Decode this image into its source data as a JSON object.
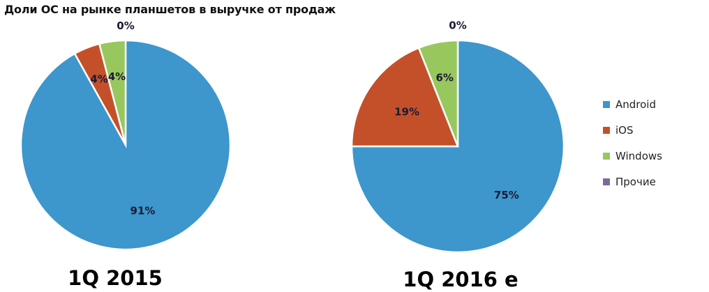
{
  "chart_data": {
    "title": "Доли ОС на рынке планшетов в выручке от продаж",
    "type": "pie",
    "legend_position": "right",
    "series_names": [
      "Android",
      "iOS",
      "Windows",
      "Прочие"
    ],
    "colors": {
      "Android": "#3d96cc",
      "iOS": "#c4502a",
      "Windows": "#98c75e",
      "Прочие": "#7c6a9a"
    },
    "charts": [
      {
        "caption": "1Q 2015",
        "slices": [
          {
            "name": "Android",
            "value": 91,
            "label": "91%"
          },
          {
            "name": "iOS",
            "value": 4,
            "label": "4%"
          },
          {
            "name": "Windows",
            "value": 4,
            "label": "4%"
          },
          {
            "name": "Прочие",
            "value": 0,
            "label": "0%"
          }
        ]
      },
      {
        "caption": "1Q 2016 е",
        "slices": [
          {
            "name": "Android",
            "value": 75,
            "label": "75%"
          },
          {
            "name": "iOS",
            "value": 19,
            "label": "19%"
          },
          {
            "name": "Windows",
            "value": 6,
            "label": "6%"
          },
          {
            "name": "Прочие",
            "value": 0,
            "label": "0%"
          }
        ]
      }
    ]
  }
}
